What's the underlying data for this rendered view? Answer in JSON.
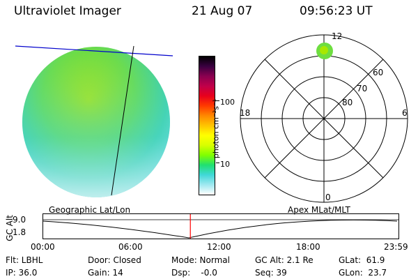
{
  "header": {
    "title": "Ultraviolet Imager",
    "date": "21 Aug 07",
    "time": "09:56:23 UT"
  },
  "colorbar": {
    "label": "photon cm⁻²s⁻¹",
    "ticks": [
      "100",
      "10"
    ],
    "colors": [
      "#000000",
      "#3a0040",
      "#8a0050",
      "#c0004a",
      "#e8001c",
      "#ff3a00",
      "#ff8800",
      "#ffc400",
      "#ffff00",
      "#d8ff00",
      "#80ff00",
      "#20e070",
      "#40d8d8",
      "#a0e8f0",
      "#ffffff"
    ]
  },
  "polar_plot": {
    "mlt_labels": {
      "top": "12",
      "right": "6",
      "bottom": "0",
      "left": "18"
    },
    "lat_labels": [
      "60",
      "70",
      "80"
    ]
  },
  "timeline": {
    "left_label": "Geographic Lat/Lon",
    "right_label": "Apex MLat/MLT",
    "axis_label": "GC Alt",
    "y_ticks": [
      "9.0",
      "1.8"
    ],
    "x_ticks": [
      "00:00",
      "06:00",
      "12:00",
      "18:00",
      "23:59"
    ],
    "marker_time": "09:56",
    "marker_color": "#ff0000"
  },
  "footer": {
    "flt": "Flt: LBHL",
    "ip": "IP: 36.0",
    "door": "Door: Closed",
    "gain": "Gain: 14",
    "mode": "Mode: Normal",
    "dsp": "Dsp:    -0.0",
    "gc_alt": "GC Alt: 2.1 Re",
    "seq": "Seq: 39",
    "glat": "GLat:  61.9",
    "glon": "GLon:  23.7"
  }
}
